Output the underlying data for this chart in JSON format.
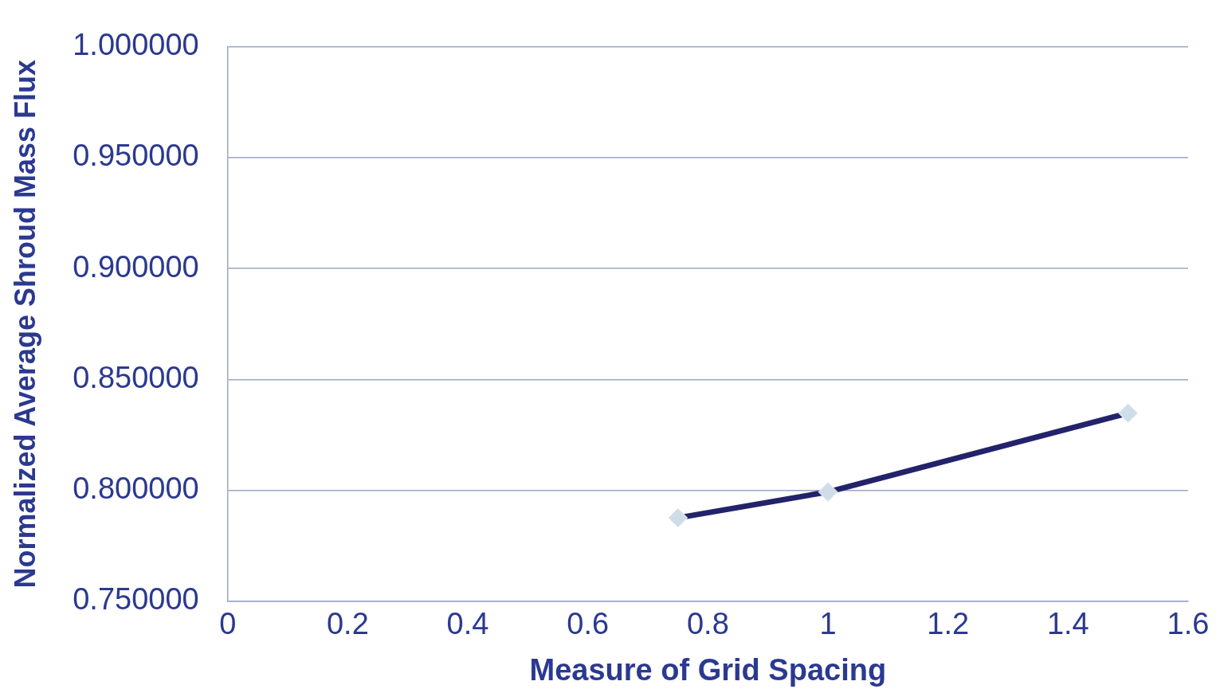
{
  "chart_data": {
    "type": "line",
    "xlabel": "Measure of Grid Spacing",
    "ylabel": "Normalized Average Shroud Mass Flux",
    "x": [
      0.75,
      1,
      1.5
    ],
    "series": [
      {
        "color": "#23236b",
        "values": [
          0.7876,
          0.7993,
          0.8348
        ]
      }
    ],
    "xlim": [
      0,
      1.6
    ],
    "xticks": [
      0,
      0.2,
      0.4,
      0.6,
      0.8,
      1,
      1.2,
      1.4,
      1.6
    ],
    "ylim": [
      0.75,
      1
    ],
    "yticks": [
      {
        "value": 0.75,
        "label": "0.750000"
      },
      {
        "value": 0.8,
        "label": "0.800000"
      },
      {
        "value": 0.85,
        "label": "0.850000"
      },
      {
        "value": 0.9,
        "label": "0.900000"
      },
      {
        "value": 0.95,
        "label": "0.950000"
      },
      {
        "value": 1,
        "label": "1.000000"
      }
    ],
    "grid": "y",
    "legend": false,
    "marker": "diamond",
    "line_style": "solid"
  }
}
